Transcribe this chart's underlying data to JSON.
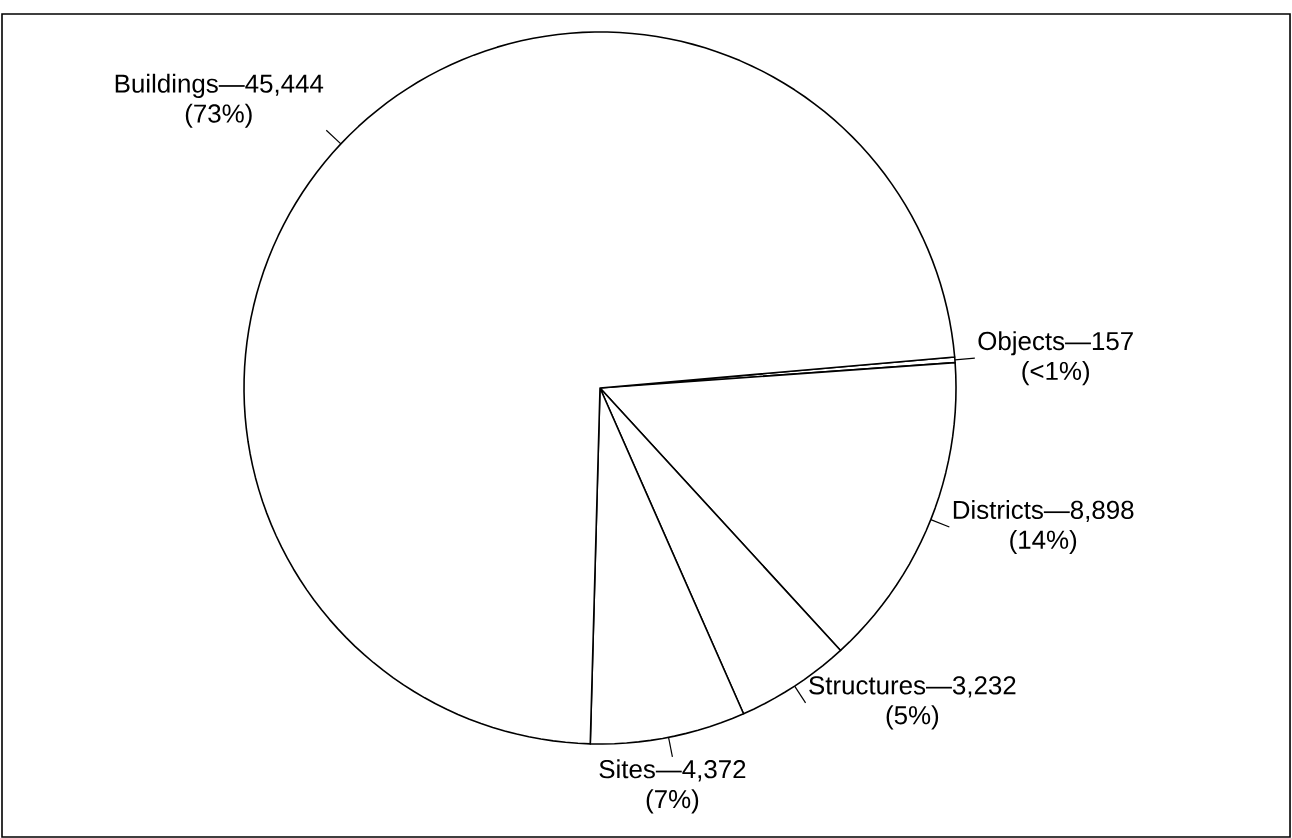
{
  "chart_data": {
    "type": "pie",
    "categories": [
      "Objects",
      "Districts",
      "Structures",
      "Sites",
      "Buildings"
    ],
    "values": [
      157,
      8898,
      3232,
      4372,
      45444
    ],
    "value_labels": [
      "—157",
      "—8,898",
      "—3,232",
      "—4,372",
      "—45,444"
    ],
    "colors": [
      "#ffffff",
      "#ffffff",
      "#ffffff",
      "#ffffff",
      "#ffffff"
    ],
    "annotations": [
      {
        "text": "(<1%)",
        "x": "Objects"
      },
      {
        "text": "(14%)",
        "x": "Districts"
      },
      {
        "text": "(5%)",
        "x": "Structures"
      },
      {
        "text": "(7%)",
        "x": "Sites"
      },
      {
        "text": "(73%)",
        "x": "Buildings"
      }
    ]
  }
}
